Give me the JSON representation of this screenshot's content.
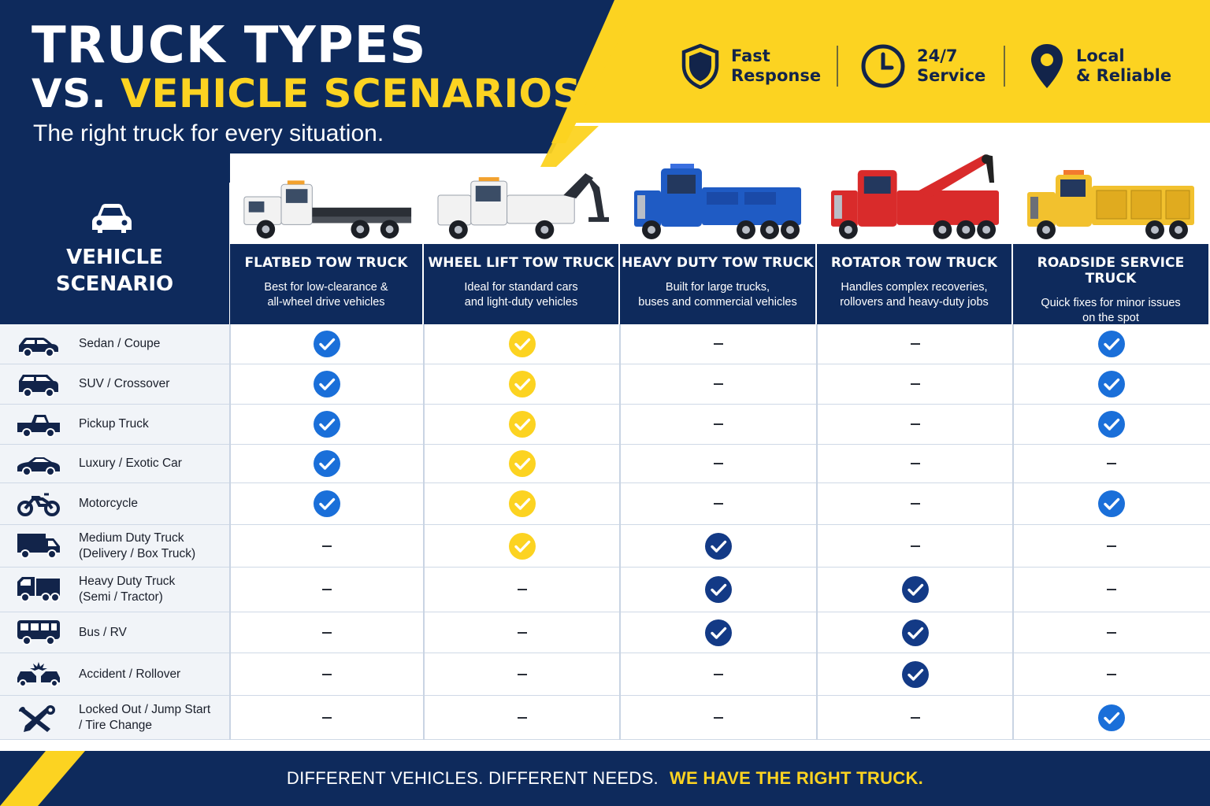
{
  "header": {
    "title_line1": "TRUCK TYPES",
    "title_line2_prefix": "VS.",
    "title_line2_highlight": "VEHICLE SCENARIOS",
    "subtitle": "The right truck for every situation.",
    "features": [
      {
        "icon": "shield-icon",
        "line1": "Fast",
        "line2": "Response"
      },
      {
        "icon": "clock-icon",
        "line1": "24/7",
        "line2": "Service"
      },
      {
        "icon": "location-pin-icon",
        "line1": "Local",
        "line2": "& Reliable"
      }
    ]
  },
  "colors": {
    "navy": "#0e2a5c",
    "yellow": "#fcd321",
    "check_blue": "#1a6fd9",
    "check_yellow": "#fcd321",
    "check_navy": "#133a86"
  },
  "table": {
    "scenario_header": {
      "icon": "car-front-icon",
      "line1": "VEHICLE",
      "line2": "SCENARIO"
    },
    "columns": [
      {
        "name": "FLATBED TOW TRUCK",
        "desc_line1": "Best for low-clearance &",
        "desc_line2": "all-wheel drive vehicles",
        "truck_color": "#f2f2f2",
        "check_color": "#1a6fd9"
      },
      {
        "name": "WHEEL LIFT TOW TRUCK",
        "desc_line1": "Ideal for standard cars",
        "desc_line2": "and light-duty vehicles",
        "truck_color": "#f2f2f2",
        "check_color": "#fcd321"
      },
      {
        "name": "HEAVY DUTY TOW TRUCK",
        "desc_line1": "Built for large trucks,",
        "desc_line2": "buses and commercial vehicles",
        "truck_color": "#1f5bc4",
        "check_color": "#133a86"
      },
      {
        "name": "ROTATOR TOW TRUCK",
        "desc_line1": "Handles complex recoveries,",
        "desc_line2": "rollovers and heavy-duty jobs",
        "truck_color": "#d92b2b",
        "check_color": "#133a86"
      },
      {
        "name": "ROADSIDE SERVICE TRUCK",
        "desc_line1": "Quick fixes for minor issues",
        "desc_line2": "on the spot",
        "truck_color": "#f2c12e",
        "check_color": "#1a6fd9"
      }
    ],
    "rows": [
      {
        "icon": "sedan-icon",
        "line1": "Sedan / Coupe",
        "line2": "",
        "marks": [
          true,
          true,
          false,
          false,
          true
        ]
      },
      {
        "icon": "suv-icon",
        "line1": "SUV / Crossover",
        "line2": "",
        "marks": [
          true,
          true,
          false,
          false,
          true
        ]
      },
      {
        "icon": "pickup-icon",
        "line1": "Pickup Truck",
        "line2": "",
        "marks": [
          true,
          true,
          false,
          false,
          true
        ]
      },
      {
        "icon": "sports-car-icon",
        "line1": "Luxury / Exotic Car",
        "line2": "",
        "marks": [
          true,
          true,
          false,
          false,
          false
        ]
      },
      {
        "icon": "motorcycle-icon",
        "line1": "Motorcycle",
        "line2": "",
        "marks": [
          true,
          true,
          false,
          false,
          true
        ]
      },
      {
        "icon": "box-truck-icon",
        "line1": "Medium Duty Truck",
        "line2": "(Delivery / Box Truck)",
        "marks": [
          false,
          true,
          true,
          false,
          false
        ]
      },
      {
        "icon": "semi-truck-icon",
        "line1": "Heavy Duty Truck",
        "line2": "(Semi / Tractor)",
        "marks": [
          false,
          false,
          true,
          true,
          false
        ]
      },
      {
        "icon": "bus-icon",
        "line1": "Bus / RV",
        "line2": "",
        "marks": [
          false,
          false,
          true,
          true,
          false
        ]
      },
      {
        "icon": "accident-icon",
        "line1": "Accident / Rollover",
        "line2": "",
        "marks": [
          false,
          false,
          false,
          true,
          false
        ]
      },
      {
        "icon": "wrench-icon",
        "line1": "Locked Out / Jump Start",
        "line2": "/ Tire Change",
        "marks": [
          false,
          false,
          false,
          false,
          true
        ]
      }
    ]
  },
  "footer": {
    "text": "DIFFERENT VEHICLES. DIFFERENT NEEDS.",
    "highlight": "WE HAVE THE RIGHT TRUCK."
  }
}
